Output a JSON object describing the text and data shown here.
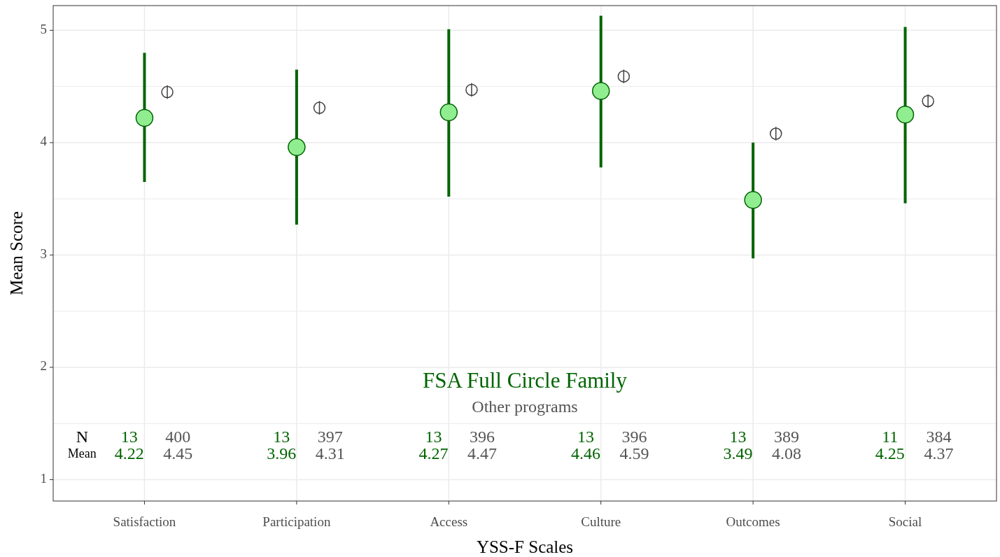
{
  "chart_data": {
    "type": "scatter",
    "xlabel": "YSS-F Scales",
    "ylabel": "Mean Score",
    "categories": [
      "Satisfaction",
      "Participation",
      "Access",
      "Culture",
      "Outcomes",
      "Social"
    ],
    "series": [
      {
        "name": "FSA Full Circle Family",
        "color": "#006400",
        "values": [
          4.22,
          3.96,
          4.27,
          4.46,
          3.49,
          4.25
        ],
        "errors": [
          [
            3.65,
            4.8
          ],
          [
            3.27,
            4.65
          ],
          [
            3.52,
            5.01
          ],
          [
            3.78,
            5.13
          ],
          [
            2.97,
            4.0
          ],
          [
            3.46,
            5.03
          ]
        ]
      },
      {
        "name": "Other programs",
        "color": "#404040",
        "values": [
          4.45,
          4.31,
          4.47,
          4.59,
          4.08,
          4.37
        ],
        "errors": [
          0.06,
          0.06,
          0.06,
          0.06,
          0.06,
          0.06
        ]
      }
    ],
    "marker": "circle",
    "ylim": [
      0.81,
      5.22
    ],
    "yticks": [
      1,
      {
        "value": 1.5,
        "label": null
      },
      2,
      {
        "value": 2.5,
        "label": null
      },
      3,
      {
        "value": 3.5,
        "label": null
      },
      4,
      {
        "value": 4.5,
        "label": null
      },
      5
    ],
    "grid": true,
    "legend": "bottom",
    "annotations": [
      "N",
      "Mean",
      "13",
      "400",
      "4.22",
      "4.45",
      "13",
      "397",
      "3.96",
      "4.31",
      "13",
      "396",
      "4.27",
      "4.47",
      "13",
      "396",
      "4.46",
      "4.59",
      "13",
      "389",
      "3.49",
      "4.08",
      "11",
      "384",
      "4.25",
      "4.37"
    ]
  }
}
